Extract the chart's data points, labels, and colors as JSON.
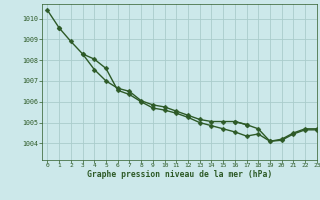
{
  "title": "Graphe pression niveau de la mer (hPa)",
  "background_color": "#cce8ea",
  "grid_color": "#aacccc",
  "line_color": "#2d5a27",
  "xlim": [
    -0.5,
    23
  ],
  "ylim": [
    1003.2,
    1010.7
  ],
  "yticks": [
    1004,
    1005,
    1006,
    1007,
    1008,
    1009,
    1010
  ],
  "xticks": [
    0,
    1,
    2,
    3,
    4,
    5,
    6,
    7,
    8,
    9,
    10,
    11,
    12,
    13,
    14,
    15,
    16,
    17,
    18,
    19,
    20,
    21,
    22,
    23
  ],
  "series": [
    [
      1010.4,
      1009.55,
      null,
      null,
      null,
      null,
      null,
      null,
      null,
      null,
      null,
      null,
      null,
      null,
      null,
      null,
      null,
      null,
      null,
      null,
      null,
      null,
      null,
      null
    ],
    [
      null,
      1009.55,
      1008.9,
      1008.3,
      1007.55,
      1007.0,
      1006.65,
      1006.5,
      1006.05,
      1005.85,
      1005.75,
      1005.55,
      1005.35,
      1005.15,
      1005.05,
      1005.05,
      1005.05,
      1004.9,
      null,
      null,
      null,
      null,
      null,
      null
    ],
    [
      null,
      null,
      null,
      1008.3,
      1008.05,
      1007.6,
      1006.55,
      1006.35,
      1006.0,
      1005.7,
      1005.6,
      1005.45,
      1005.25,
      1005.0,
      1004.85,
      1004.7,
      1004.55,
      1004.35,
      1004.45,
      1004.1,
      1004.15,
      1004.45,
      1004.65,
      1004.65
    ],
    [
      null,
      null,
      null,
      null,
      null,
      null,
      null,
      null,
      null,
      null,
      null,
      null,
      null,
      null,
      null,
      null,
      1005.05,
      1004.9,
      1004.7,
      1004.1,
      1004.2,
      1004.5,
      1004.7,
      1004.7
    ]
  ],
  "markersize": 2.5,
  "linewidth": 1.0
}
